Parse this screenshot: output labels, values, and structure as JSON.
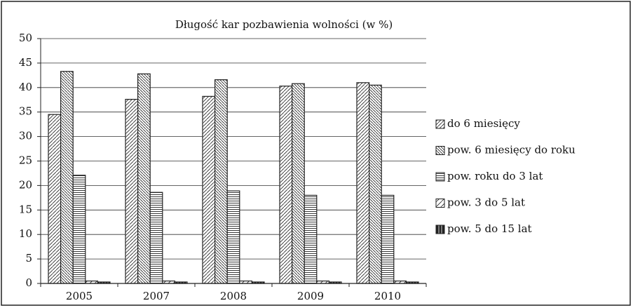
{
  "chart_data": {
    "type": "bar",
    "title": "Długość kar pozbawienia wolności (w %)",
    "categories": [
      "2005",
      "2007",
      "2008",
      "2009",
      "2010"
    ],
    "series": [
      {
        "name": "do 6 miesięcy",
        "color": "#222",
        "pattern": "diag-up",
        "values": [
          34.5,
          37.6,
          38.2,
          40.3,
          41.0
        ]
      },
      {
        "name": "pow. 6 miesięcy do roku",
        "color": "#222",
        "pattern": "diag-down",
        "values": [
          43.3,
          42.8,
          41.6,
          40.8,
          40.5
        ]
      },
      {
        "name": "pow. roku do 3 lat",
        "color": "#222",
        "pattern": "horizontal",
        "values": [
          22.1,
          18.6,
          18.9,
          18.0,
          18.0
        ]
      },
      {
        "name": "pow. 3 do 5 lat",
        "color": "#222",
        "pattern": "diag-up-wide",
        "values": [
          0.5,
          0.5,
          0.5,
          0.5,
          0.5
        ]
      },
      {
        "name": "pow. 5 do 15 lat",
        "color": "#222",
        "pattern": "solid",
        "values": [
          0.3,
          0.3,
          0.3,
          0.3,
          0.3
        ]
      }
    ],
    "ylim": [
      0,
      50
    ],
    "yticks": [
      0,
      5,
      10,
      15,
      20,
      25,
      30,
      35,
      40,
      45,
      50
    ],
    "grid": true,
    "legend": "right"
  }
}
